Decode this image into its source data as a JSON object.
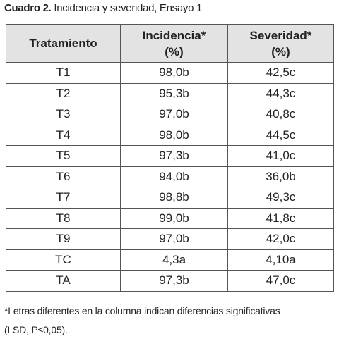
{
  "caption": {
    "label": "Cuadro 2.",
    "text": "Incidencia y severidad, Ensayo 1"
  },
  "table": {
    "header": [
      [
        "Tratamiento"
      ],
      [
        "Incidencia*",
        "(%)"
      ],
      [
        "Severidad*",
        "(%)"
      ]
    ],
    "rows": [
      [
        "T1",
        "98,0b",
        "42,5c"
      ],
      [
        "T2",
        "95,3b",
        "44,3c"
      ],
      [
        "T3",
        "97,0b",
        "40,8c"
      ],
      [
        "T4",
        "98,0b",
        "44,5c"
      ],
      [
        "T5",
        "97,3b",
        "41,0c"
      ],
      [
        "T6",
        "94,0b",
        "36,0b"
      ],
      [
        "T7",
        "98,8b",
        "49,3c"
      ],
      [
        "T8",
        "99,0b",
        "41,8c"
      ],
      [
        "T9",
        "97,0b",
        "42,0c"
      ],
      [
        "TC",
        "4,3a",
        "4,10a"
      ],
      [
        "TA",
        "97,3b",
        "47,0c"
      ]
    ]
  },
  "footnote": [
    "*Letras diferentes en la columna indican diferencias significativas",
    "(LSD, P≤0,05)."
  ]
}
